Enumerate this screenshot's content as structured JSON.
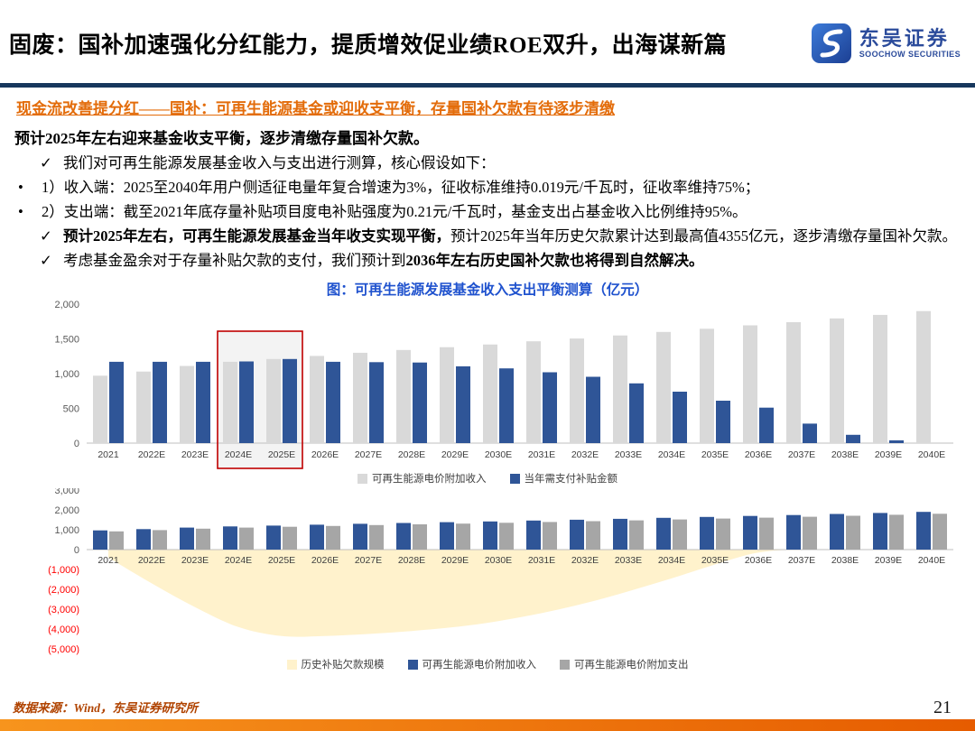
{
  "header": {
    "title": "固废：国补加速强化分红能力，提质增效促业绩ROE双升，出海谋新篇",
    "logo_cn": "东吴证券",
    "logo_en": "SOOCHOW SECURITIES"
  },
  "section": {
    "heading": "现金流改善提分红——国补：可再生能源基金或迎收支平衡，存量国补欠款有待逐步清缴",
    "lead": "预计2025年左右迎来基金收支平衡，逐步清缴存量国补欠款。",
    "bullets": [
      {
        "marker": "✓",
        "style": "check",
        "segments": [
          {
            "text": "我们对可再生能源发展基金收入与支出进行测算，核心假设如下：",
            "bold": false
          }
        ]
      },
      {
        "marker": "•",
        "style": "dot",
        "segments": [
          {
            "text": "1）收入端：2025至2040年用户侧适征电量年复合增速为3%，征收标准维持0.019元/千瓦时，征收率维持75%；",
            "bold": false
          }
        ]
      },
      {
        "marker": "•",
        "style": "dot",
        "segments": [
          {
            "text": "2）支出端：截至2021年底存量补贴项目度电补贴强度为0.21元/千瓦时，基金支出占基金收入比例维持95%。",
            "bold": false
          }
        ]
      },
      {
        "marker": "✓",
        "style": "check",
        "segments": [
          {
            "text": "预计2025年左右，可再生能源发展基金当年收支实现平衡，",
            "bold": true
          },
          {
            "text": "预计2025年当年历史欠款累计达到最高值4355亿元，逐步清缴存量国补欠款。",
            "bold": false
          }
        ]
      },
      {
        "marker": "✓",
        "style": "check",
        "segments": [
          {
            "text": "考虑基金盈余对于存量补贴欠款的支付，我们预计到",
            "bold": false
          },
          {
            "text": "2036年左右历史国补欠款也将得到自然解决。",
            "bold": true
          }
        ]
      }
    ]
  },
  "chart_data": [
    {
      "type": "bar",
      "title": "图：可再生能源发展基金收入支出平衡测算（亿元）",
      "categories": [
        "2021",
        "2022E",
        "2023E",
        "2024E",
        "2025E",
        "2026E",
        "2027E",
        "2028E",
        "2029E",
        "2030E",
        "2031E",
        "2032E",
        "2033E",
        "2034E",
        "2035E",
        "2036E",
        "2037E",
        "2038E",
        "2039E",
        "2040E"
      ],
      "series": [
        {
          "name": "可再生能源电价附加收入",
          "color": "#D9D9D9",
          "values": [
            970,
            1030,
            1110,
            1170,
            1210,
            1255,
            1300,
            1340,
            1380,
            1420,
            1465,
            1505,
            1550,
            1600,
            1645,
            1695,
            1740,
            1795,
            1845,
            1900
          ]
        },
        {
          "name": "当年需支付补贴金额",
          "color": "#2F5597",
          "values": [
            1170,
            1170,
            1170,
            1175,
            1210,
            1170,
            1165,
            1160,
            1105,
            1075,
            1020,
            955,
            860,
            740,
            610,
            510,
            280,
            120,
            40,
            0
          ]
        }
      ],
      "ylim": [
        0,
        2000
      ],
      "yticks": [
        0,
        500,
        1000,
        1500,
        2000
      ],
      "grid": false,
      "legend_position": "bottom",
      "highlight": {
        "from": "2024E",
        "to": "2025E",
        "color": "#C00000"
      }
    },
    {
      "type": "area+bar",
      "title": "",
      "categories": [
        "2021",
        "2022E",
        "2023E",
        "2024E",
        "2025E",
        "2026E",
        "2027E",
        "2028E",
        "2029E",
        "2030E",
        "2031E",
        "2032E",
        "2033E",
        "2034E",
        "2035E",
        "2036E",
        "2037E",
        "2038E",
        "2039E",
        "2040E"
      ],
      "series": [
        {
          "name": "历史补贴欠款规模",
          "kind": "area",
          "color": "#FFF2CC",
          "values": [
            -400,
            -1700,
            -2900,
            -3900,
            -4355,
            -4350,
            -4250,
            -4100,
            -3900,
            -3600,
            -3200,
            -2700,
            -2100,
            -1450,
            -750,
            -150,
            0,
            0,
            0,
            0
          ]
        },
        {
          "name": "可再生能源电价附加收入",
          "kind": "bar",
          "color": "#2F5597",
          "values": [
            970,
            1030,
            1110,
            1170,
            1210,
            1255,
            1300,
            1340,
            1380,
            1420,
            1465,
            1505,
            1550,
            1600,
            1645,
            1695,
            1740,
            1795,
            1845,
            1900
          ]
        },
        {
          "name": "可再生能源电价附加支出",
          "kind": "bar",
          "color": "#A6A6A6",
          "values": [
            920,
            980,
            1055,
            1110,
            1150,
            1190,
            1235,
            1275,
            1310,
            1350,
            1390,
            1430,
            1475,
            1520,
            1565,
            1610,
            1655,
            1705,
            1755,
            1805
          ]
        }
      ],
      "ylim": [
        -5000,
        3000
      ],
      "yticks": [
        3000,
        2000,
        1000,
        0,
        -1000,
        -2000,
        -3000,
        -4000,
        -5000
      ],
      "negative_label_style": "red-parentheses",
      "grid": false,
      "legend_position": "bottom"
    }
  ],
  "footer": {
    "source": "数据来源：Wind，东吴证券研究所",
    "page": "21"
  },
  "colors": {
    "divider_navy": "#17375D",
    "heading_orange": "#E36C0A",
    "chart_title_blue": "#1F52CE",
    "footer_bar_orange": "#EE7311",
    "negative_tick_red": "#FF0000",
    "highlight_box_red": "#C00000"
  }
}
